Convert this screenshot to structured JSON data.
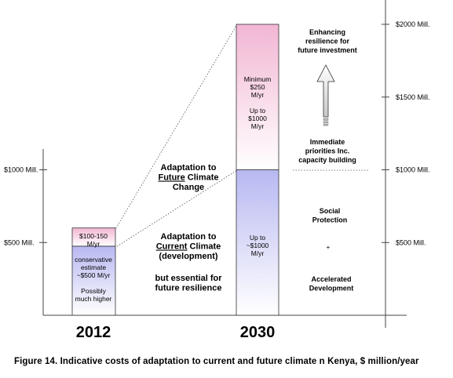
{
  "caption": "Figure 14. Indicative costs of adaptation to current and future climate n Kenya, $ million/year",
  "chart_data": {
    "type": "bar",
    "title": "",
    "xlabel": "",
    "ylabel": "",
    "categories": [
      "2012",
      "2030"
    ],
    "series": [
      {
        "name": "Adaptation to Current Climate (development)",
        "values": [
          475,
          1000
        ]
      },
      {
        "name": "Adaptation to Future Climate Change",
        "values": [
          125,
          1000
        ]
      }
    ],
    "stacked": true,
    "left_ticks": [
      {
        "value": 500,
        "label": "$500 Mill."
      },
      {
        "value": 1000,
        "label": "$1000 Mill."
      }
    ],
    "right_ticks": [
      {
        "value": 500,
        "label": "$500 Mill."
      },
      {
        "value": 1000,
        "label": "$1000 Mill."
      },
      {
        "value": 1500,
        "label": "$1500 Mill."
      },
      {
        "value": 2000,
        "label": "$2000 Mill."
      }
    ],
    "ylim": [
      0,
      2000
    ],
    "grid": false,
    "legend": "none",
    "colors": {
      "current": "#b8b8f2",
      "future": "#f2b6d3",
      "axis": "#444444"
    },
    "bar_labels": {
      "2012_current": [
        "conservative",
        "estimate",
        "~$500 M/yr",
        "",
        "Possibly",
        "much higher"
      ],
      "2012_future": [
        "$100-150",
        "M/yr"
      ],
      "2030_current": [
        "Up to",
        "~$1000",
        "M/yr"
      ],
      "2030_future": [
        "Minimum",
        "$250",
        "M/yr",
        "",
        "Up to",
        "$1000",
        "M/yr"
      ]
    },
    "annotations": {
      "future": [
        [
          "Adaptation to",
          ""
        ],
        [
          "Future",
          " Climate"
        ],
        [
          "Change",
          ""
        ]
      ],
      "current": [
        [
          "Adaptation to",
          ""
        ],
        [
          "Current",
          " Climate"
        ],
        [
          "(development)",
          ""
        ]
      ],
      "essential": [
        "but essential for",
        "future resilience"
      ],
      "enhancing": [
        "Enhancing",
        "resilience for",
        "future investment"
      ],
      "immediate": [
        "Immediate",
        "priorities Inc.",
        "capacity building"
      ],
      "social": [
        "Social",
        "Protection"
      ],
      "accelerated": [
        "Accelerated",
        "Development"
      ],
      "plus": "+"
    }
  }
}
